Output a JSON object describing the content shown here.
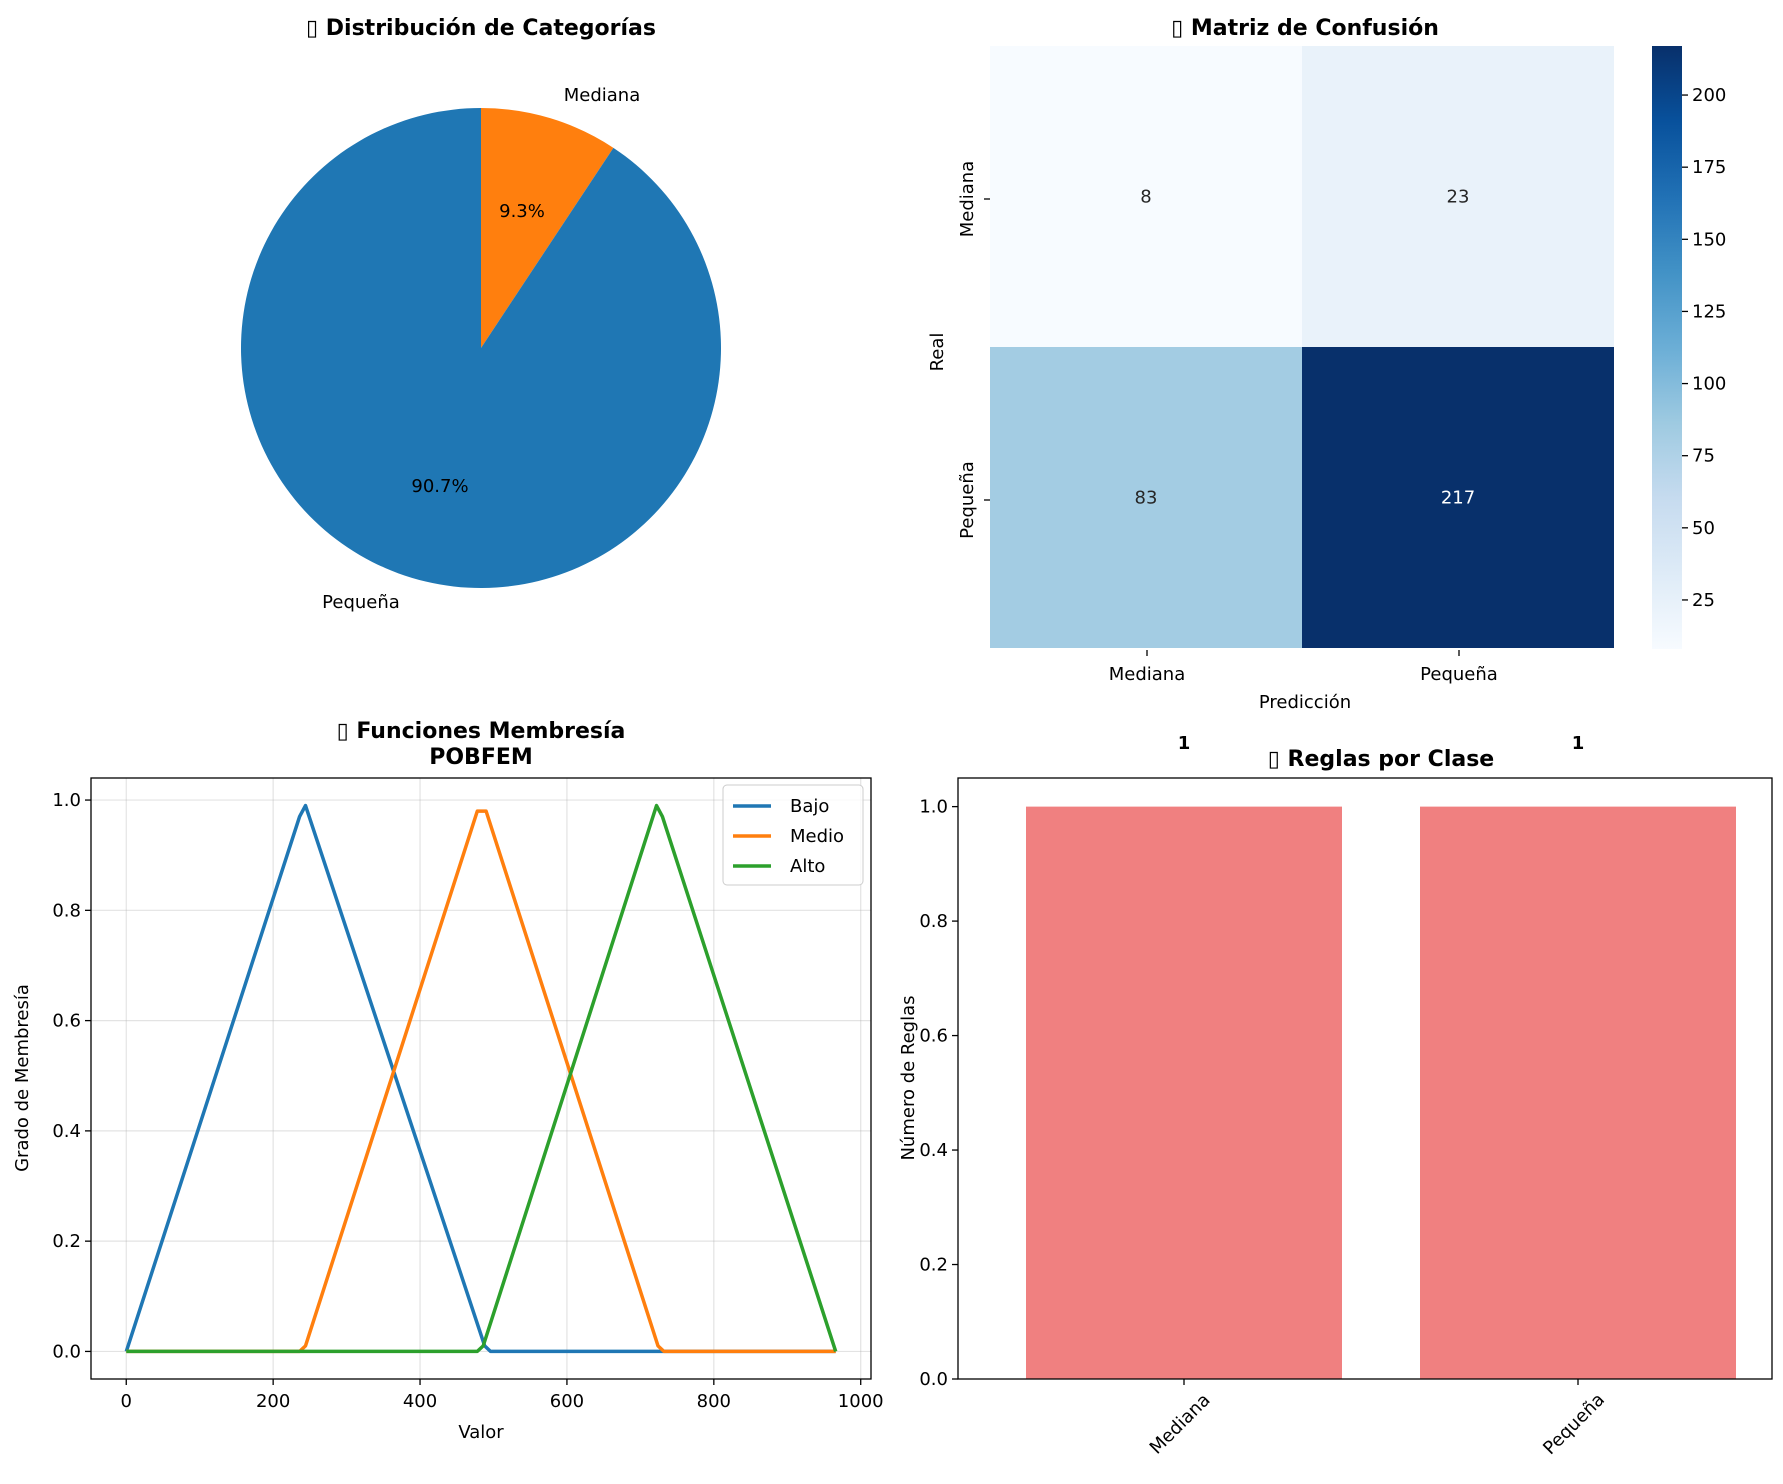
{
  "chart_data": [
    {
      "type": "pie",
      "title": "▯ Distribución de Categorías",
      "categories": [
        "Pequeña",
        "Mediana"
      ],
      "values": [
        90.7,
        9.3
      ],
      "pct_labels": [
        "90.7%",
        "9.3%"
      ],
      "colors": [
        "#1f77b4",
        "#ff7f0e"
      ]
    },
    {
      "type": "heatmap",
      "title": "▯ Matriz de Confusión",
      "xlabel": "Predicción",
      "ylabel": "Real",
      "x_categories": [
        "Mediana",
        "Pequeña"
      ],
      "y_categories": [
        "Mediana",
        "Pequeña"
      ],
      "values": [
        [
          8,
          23
        ],
        [
          83,
          217
        ]
      ],
      "colormap": "Blues",
      "colorbar_range": [
        8,
        217
      ],
      "colorbar_ticks": [
        "25",
        "50",
        "75",
        "100",
        "125",
        "150",
        "175",
        "200"
      ]
    },
    {
      "type": "line",
      "title": "▯ Funciones Membresía",
      "title_line2": "POBFEM",
      "xlabel": "Valor",
      "ylabel": "Grado de Membresía",
      "xlim": [
        -48,
        1014
      ],
      "ylim": [
        -0.05,
        1.04
      ],
      "xticks": [
        "0",
        "200",
        "400",
        "600",
        "800",
        "1000"
      ],
      "yticks": [
        "0.0",
        "0.2",
        "0.4",
        "0.6",
        "0.8",
        "1.0"
      ],
      "grid": true,
      "legend_position": "upper right",
      "series": [
        {
          "name": "Bajo",
          "color": "#1f77b4",
          "x": [
            0,
            236,
            244,
            488,
            496,
            966
          ],
          "y": [
            0,
            0.97,
            0.99,
            0.01,
            0,
            0
          ]
        },
        {
          "name": "Medio",
          "color": "#ff7f0e",
          "x": [
            0,
            236,
            244,
            478,
            486,
            490,
            724,
            732,
            966
          ],
          "y": [
            0,
            0,
            0.01,
            0.98,
            0.98,
            0.98,
            0.01,
            0,
            0
          ]
        },
        {
          "name": "Alto",
          "color": "#2ca02c",
          "x": [
            0,
            478,
            486,
            722,
            730,
            966
          ],
          "y": [
            0,
            0,
            0.01,
            0.99,
            0.97,
            0
          ]
        }
      ]
    },
    {
      "type": "bar",
      "title": "▯ Reglas por Clase",
      "ylabel": "Número de Reglas",
      "categories": [
        "Mediana",
        "Pequeña"
      ],
      "values": [
        1,
        1
      ],
      "value_labels": [
        "1",
        "1"
      ],
      "ylim": [
        0,
        1.05
      ],
      "yticks": [
        "0.0",
        "0.2",
        "0.4",
        "0.6",
        "0.8",
        "1.0"
      ],
      "color": "#f08080"
    }
  ]
}
